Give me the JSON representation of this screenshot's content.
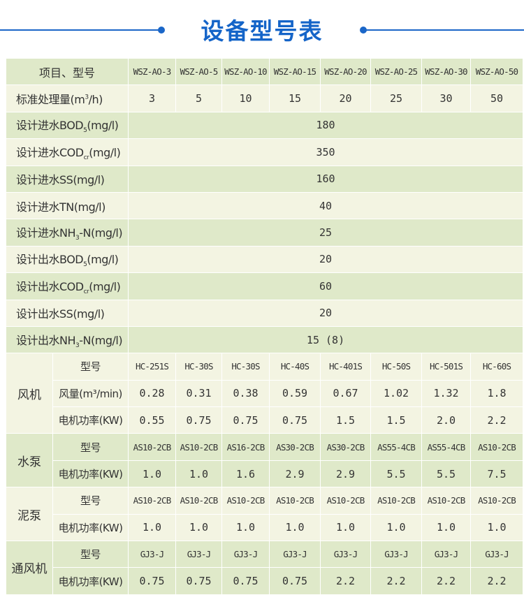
{
  "title": "设备型号表",
  "colors": {
    "title": "#1464c8",
    "row_green": "#dfe9c9",
    "row_cream": "#f3f4e2"
  },
  "header": {
    "label": "项目、型号",
    "models": [
      "WSZ-AO-3",
      "WSZ-AO-5",
      "WSZ-AO-10",
      "WSZ-AO-15",
      "WSZ-AO-20",
      "WSZ-AO-25",
      "WSZ-AO-30",
      "WSZ-AO-50"
    ]
  },
  "capacity": {
    "pre": "标准处理量(m",
    "sup": "3",
    "post": "/h)",
    "values": [
      "3",
      "5",
      "10",
      "15",
      "20",
      "25",
      "30",
      "50"
    ]
  },
  "design_rows": [
    {
      "pre": "设计进水BOD",
      "sub": "5",
      "post": "(mg/l)",
      "value": "180"
    },
    {
      "pre": "设计进水COD",
      "sub": "cr",
      "post": "(mg/l)",
      "value": "350"
    },
    {
      "pre": "设计进水SS(mg/l)",
      "sub": "",
      "post": "",
      "value": "160"
    },
    {
      "pre": "设计进水TN(mg/l)",
      "sub": "",
      "post": "",
      "value": "40"
    },
    {
      "pre": "设计进水NH",
      "sub": "3",
      "post": "-N(mg/l)",
      "value": "25"
    },
    {
      "pre": "设计出水BOD",
      "sub": "5",
      "post": "(mg/l)",
      "value": "20"
    },
    {
      "pre": "设计出水COD",
      "sub": "cr",
      "post": "(mg/l)",
      "value": "60"
    },
    {
      "pre": "设计出水SS(mg/l)",
      "sub": "",
      "post": "",
      "value": "20"
    },
    {
      "pre": "设计出水NH",
      "sub": "3",
      "post": "-N(mg/l)",
      "value": "15 (8)"
    }
  ],
  "groups": [
    {
      "name": "风机",
      "rows": [
        {
          "label": "型号",
          "values": [
            "HC-251S",
            "HC-30S",
            "HC-30S",
            "HC-40S",
            "HC-401S",
            "HC-50S",
            "HC-501S",
            "HC-60S"
          ]
        },
        {
          "label": "风量(m³/min)",
          "values": [
            "0.28",
            "0.31",
            "0.38",
            "0.59",
            "0.67",
            "1.02",
            "1.32",
            "1.8"
          ]
        },
        {
          "label": "电机功率(KW)",
          "values": [
            "0.55",
            "0.75",
            "0.75",
            "0.75",
            "1.5",
            "1.5",
            "2.0",
            "2.2"
          ]
        }
      ]
    },
    {
      "name": "水泵",
      "rows": [
        {
          "label": "型号",
          "values": [
            "AS10-2CB",
            "AS10-2CB",
            "AS16-2CB",
            "AS30-2CB",
            "AS30-2CB",
            "AS55-4CB",
            "AS55-4CB",
            "AS10-2CB"
          ]
        },
        {
          "label": "电机功率(KW)",
          "values": [
            "1.0",
            "1.0",
            "1.6",
            "2.9",
            "2.9",
            "5.5",
            "5.5",
            "7.5"
          ]
        }
      ]
    },
    {
      "name": "泥泵",
      "rows": [
        {
          "label": "型号",
          "values": [
            "AS10-2CB",
            "AS10-2CB",
            "AS10-2CB",
            "AS10-2CB",
            "AS10-2CB",
            "AS10-2CB",
            "AS10-2CB",
            "AS10-2CB"
          ]
        },
        {
          "label": "电机功率(KW)",
          "values": [
            "1.0",
            "1.0",
            "1.0",
            "1.0",
            "1.0",
            "1.0",
            "1.0",
            "1.0"
          ]
        }
      ]
    },
    {
      "name": "通风机",
      "rows": [
        {
          "label": "型号",
          "values": [
            "GJ3-J",
            "GJ3-J",
            "GJ3-J",
            "GJ3-J",
            "GJ3-J",
            "GJ3-J",
            "GJ3-J",
            "GJ3-J"
          ]
        },
        {
          "label": "电机功率(KW)",
          "values": [
            "0.75",
            "0.75",
            "0.75",
            "0.75",
            "2.2",
            "2.2",
            "2.2",
            "2.2"
          ]
        }
      ]
    }
  ]
}
